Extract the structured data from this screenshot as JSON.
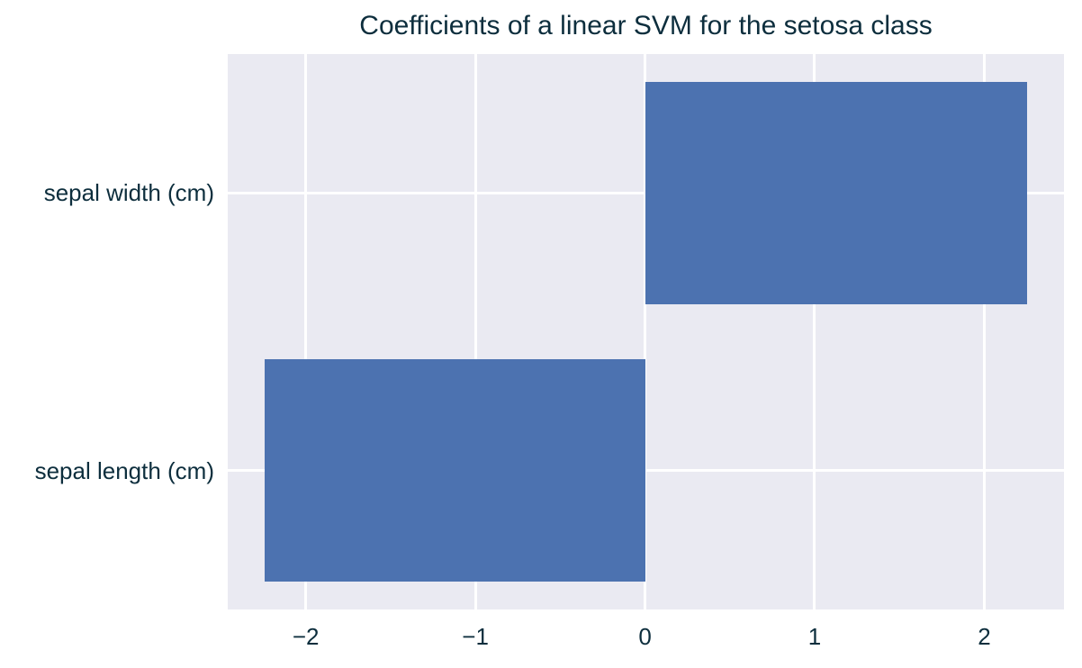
{
  "title": "Coefficients of a linear SVM for the setosa class",
  "chart_data": {
    "type": "bar",
    "orientation": "horizontal",
    "title": "Coefficients of a linear SVM for the setosa class",
    "categories": [
      "sepal width (cm)",
      "sepal length (cm)"
    ],
    "values": [
      2.25,
      -2.24
    ],
    "xlabel": "",
    "ylabel": "",
    "xlim": [
      -2.46,
      2.47
    ],
    "xticks": [
      -2,
      -1,
      0,
      1,
      2
    ],
    "xtick_labels": [
      "−2",
      "−1",
      "0",
      "1",
      "2"
    ],
    "grid": true,
    "legend": false,
    "bar_width_fraction": 0.8,
    "colors": {
      "bar": "#4c72b0",
      "plot_background": "#eaeaf2",
      "gridline": "#ffffff",
      "text": "#0d2e3d",
      "figure_background": "#ffffff"
    }
  }
}
